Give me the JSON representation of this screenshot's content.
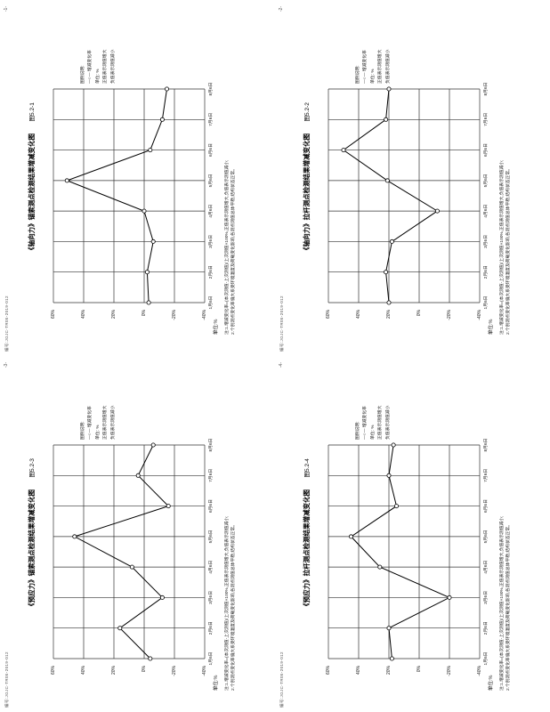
{
  "page": {
    "stamp": "编号:JGJC-TR05-2019-012",
    "unit_label": "单位:%",
    "legend": [
      "图例说明:",
      "—○— 增减变化率",
      "单位: %",
      "正值表示测值增大",
      "负值表示测值减小"
    ],
    "notes": [
      "注:1.增减变化率=(本次测值-上次测值)/上次测值×100%,正值表示测值增大,负值表示测值减小;",
      "2.个别测点变化率偏大系受环境温度及荷载变化影响,各测点测值总体平稳,结构状态正常。"
    ]
  },
  "chart_data": [
    {
      "type": "line",
      "title": "《轴向力》锚索测点检测结果增减变化图",
      "caption": "图5.2-1",
      "pagenum": "-1-",
      "x": [
        "1月6日",
        "2月6日",
        "3月6日",
        "4月6日",
        "5月6日",
        "6月6日",
        "7月6日",
        "8月6日"
      ],
      "values": [
        -3,
        -2,
        -6,
        0,
        51,
        -4,
        -12,
        -15
      ],
      "ylabels": [
        "60%",
        "40%",
        "20%",
        "0%",
        "-20%",
        "-40%"
      ],
      "ylim": [
        -40,
        60
      ],
      "xlabel": "检测日期",
      "ylabel": "单位:%",
      "grid": true,
      "legend_position": "right"
    },
    {
      "type": "line",
      "title": "《轴向力》拉杆测点检测结果增减变化图",
      "caption": "图5.2-2",
      "pagenum": "-2-",
      "x": [
        "1月6日",
        "2月6日",
        "3月6日",
        "4月6日",
        "5月6日",
        "6月6日",
        "7月6日",
        "8月6日"
      ],
      "values": [
        20,
        22,
        18,
        -12,
        21,
        50,
        22,
        20
      ],
      "ylabels": [
        "60%",
        "40%",
        "20%",
        "0%",
        "-20%",
        "-40%"
      ],
      "ylim": [
        -40,
        60
      ],
      "xlabel": "检测日期",
      "ylabel": "单位:%",
      "grid": true,
      "legend_position": "right"
    },
    {
      "type": "line",
      "title": "《预应力》锚索测点检测结果增减变化图",
      "caption": "图5.2-3",
      "pagenum": "-3-",
      "x": [
        "1月6日",
        "2月6日",
        "3月6日",
        "4月6日",
        "5月6日",
        "6月6日",
        "7月6日",
        "8月6日"
      ],
      "values": [
        -4,
        16,
        -12,
        8,
        46,
        -16,
        4,
        -6
      ],
      "ylabels": [
        "60%",
        "40%",
        "20%",
        "0%",
        "-20%",
        "-40%"
      ],
      "ylim": [
        -40,
        60
      ],
      "xlabel": "检测日期",
      "ylabel": "单位:%",
      "grid": true,
      "legend_position": "right"
    },
    {
      "type": "line",
      "title": "《预应力》拉杆测点检测结果增减变化图",
      "caption": "图5.2-4",
      "pagenum": "-4-",
      "x": [
        "1月6日",
        "2月6日",
        "3月6日",
        "4月6日",
        "5月6日",
        "6月6日",
        "7月6日",
        "8月6日"
      ],
      "values": [
        18,
        20,
        -20,
        26,
        45,
        15,
        20,
        17
      ],
      "ylabels": [
        "60%",
        "40%",
        "20%",
        "0%",
        "-20%",
        "-40%"
      ],
      "ylim": [
        -40,
        60
      ],
      "xlabel": "检测日期",
      "ylabel": "单位:%",
      "grid": true,
      "legend_position": "right"
    }
  ]
}
